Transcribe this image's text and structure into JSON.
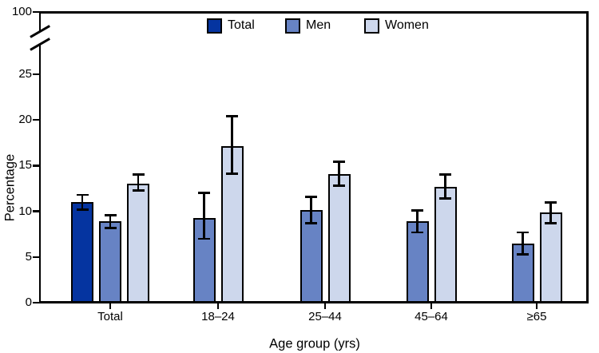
{
  "chart_data": {
    "type": "bar",
    "title": "",
    "xlabel": "Age group (yrs)",
    "ylabel": "Percentage",
    "categories": [
      "Total",
      "18–24",
      "25–44",
      "45–64",
      "≥65"
    ],
    "series": [
      {
        "name": "Total",
        "color": "#0534a0",
        "values": [
          11.0,
          null,
          null,
          null,
          null
        ],
        "ci_low": [
          10.2,
          null,
          null,
          null,
          null
        ],
        "ci_high": [
          11.8,
          null,
          null,
          null,
          null
        ]
      },
      {
        "name": "Men",
        "color": "#6783c4",
        "values": [
          8.9,
          9.3,
          10.1,
          8.9,
          6.5
        ],
        "ci_low": [
          8.2,
          7.0,
          8.7,
          7.7,
          5.3
        ],
        "ci_high": [
          9.6,
          12.0,
          11.6,
          10.1,
          7.7
        ]
      },
      {
        "name": "Women",
        "color": "#cdd7ec",
        "values": [
          13.0,
          17.1,
          14.1,
          12.7,
          9.9
        ],
        "ci_low": [
          12.3,
          14.1,
          12.8,
          11.4,
          8.7
        ],
        "ci_high": [
          14.0,
          20.4,
          15.4,
          14.0,
          11.0
        ]
      }
    ],
    "y_ticks": [
      0,
      5,
      10,
      15,
      20,
      25
    ],
    "y_axis_break": true,
    "y_axis_top_label": "100",
    "ylim": [
      0,
      27
    ],
    "error_bars": true,
    "legend_position": "top-center",
    "axis_color": "#000000",
    "background": "#ffffff"
  }
}
